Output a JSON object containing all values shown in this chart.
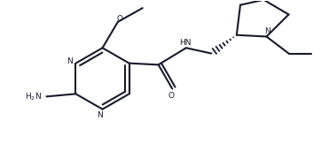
{
  "background_color": "#ffffff",
  "line_color": "#1a1a2e",
  "line_width": 1.5,
  "fig_width": 3.71,
  "fig_height": 1.79,
  "dpi": 100,
  "xlim": [
    0,
    37.1
  ],
  "ylim": [
    0,
    17.9
  ]
}
